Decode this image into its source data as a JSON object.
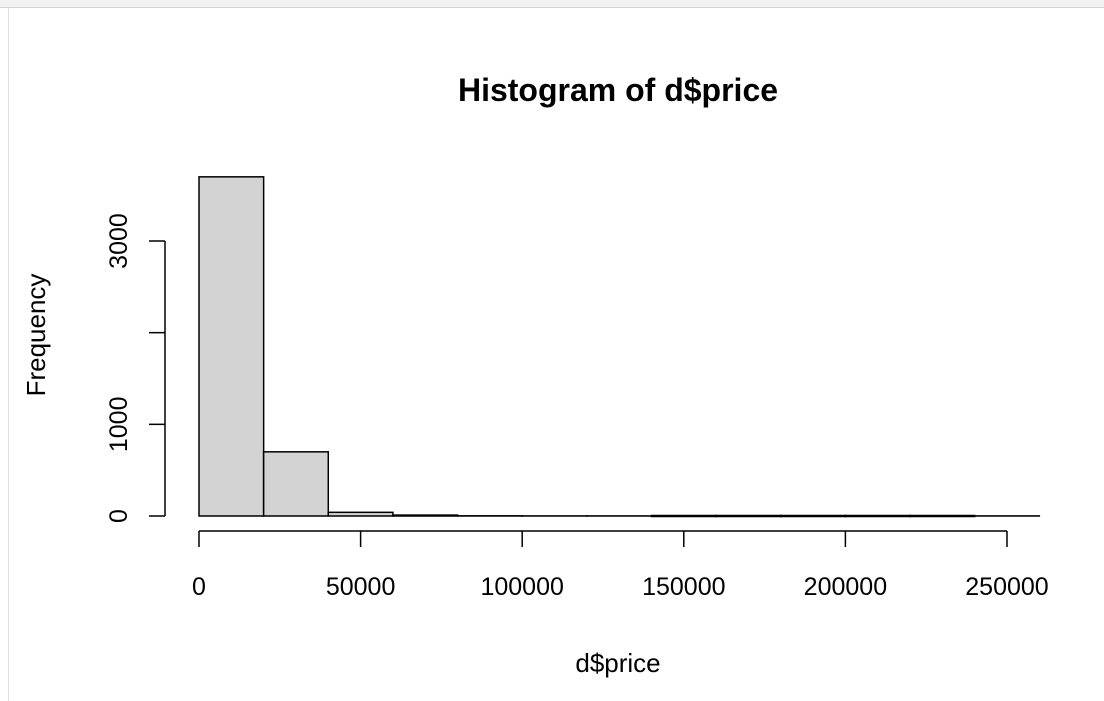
{
  "chart_data": {
    "type": "bar",
    "title": "Histogram of d$price",
    "xlabel": "d$price",
    "ylabel": "Frequency",
    "bins": [
      {
        "from": 0,
        "to": 20000,
        "count": 3700
      },
      {
        "from": 20000,
        "to": 40000,
        "count": 700
      },
      {
        "from": 40000,
        "to": 60000,
        "count": 40
      },
      {
        "from": 60000,
        "to": 80000,
        "count": 10
      },
      {
        "from": 80000,
        "to": 100000,
        "count": 2
      },
      {
        "from": 100000,
        "to": 120000,
        "count": 1
      },
      {
        "from": 120000,
        "to": 140000,
        "count": 1
      },
      {
        "from": 140000,
        "to": 160000,
        "count": 0
      },
      {
        "from": 160000,
        "to": 180000,
        "count": 0
      },
      {
        "from": 180000,
        "to": 200000,
        "count": 0
      },
      {
        "from": 200000,
        "to": 220000,
        "count": 0
      },
      {
        "from": 220000,
        "to": 240000,
        "count": 0
      },
      {
        "from": 240000,
        "to": 260000,
        "count": 1
      }
    ],
    "x_ticks": [
      0,
      50000,
      100000,
      150000,
      200000,
      250000
    ],
    "x_tick_labels": [
      "0",
      "50000",
      "100000",
      "150000",
      "200000",
      "250000"
    ],
    "y_ticks": [
      0,
      1000,
      2000,
      3000
    ],
    "y_tick_labels": [
      "0",
      "1000",
      "",
      "3000"
    ],
    "xlim": [
      0,
      260000
    ],
    "ylim": [
      0,
      3700
    ],
    "grid": false,
    "bar_color": "#d3d3d3",
    "edge_color": "#000000"
  }
}
